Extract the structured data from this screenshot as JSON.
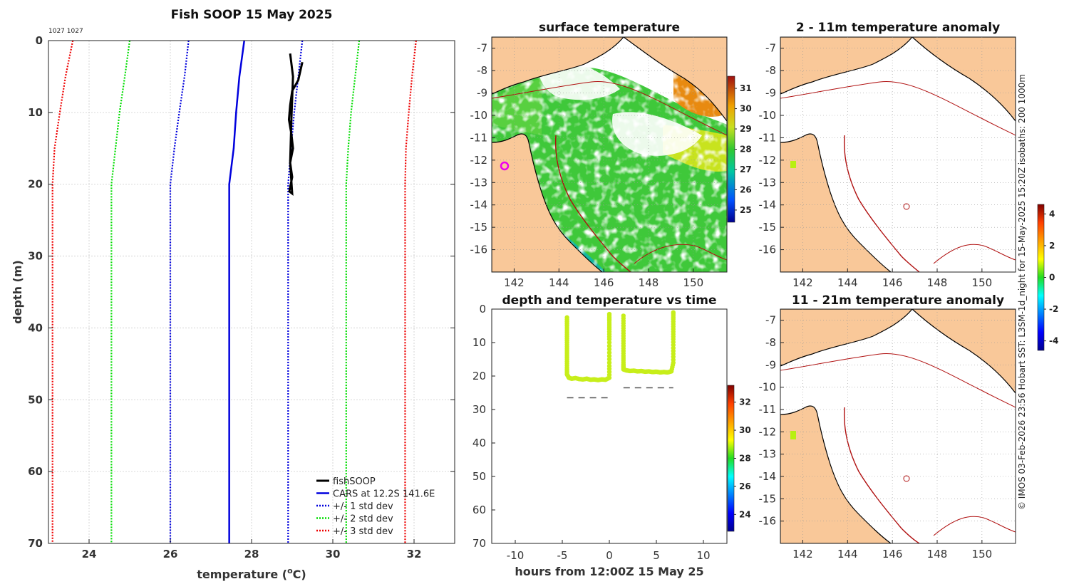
{
  "chart_data": [
    {
      "id": "profile",
      "type": "line",
      "title": "Fish SOOP 15 May 2025",
      "annotation": "1027 1027",
      "xlabel_prefix": "temperature (",
      "xlabel_sup": "o",
      "xlabel_suffix": "C)",
      "ylabel": "depth (m)",
      "xlim": [
        23.0,
        33.0
      ],
      "ylim": [
        0,
        70
      ],
      "x_ticks": [
        "24",
        "26",
        "28",
        "30",
        "32"
      ],
      "y_ticks": [
        "0",
        "10",
        "20",
        "30",
        "40",
        "50",
        "60",
        "70"
      ],
      "legend": [
        "fishSOOP",
        "CARS at 12.2S 141.6E",
        "+/- 1 std dev",
        "+/- 2 std dev",
        "+/- 3 std dev"
      ],
      "series": [
        {
          "name": "CARS mean",
          "color": "#0000dd",
          "style": "solid",
          "temp": [
            27.82,
            27.7,
            27.62,
            27.56,
            27.45,
            27.45,
            27.45,
            27.45,
            27.45,
            27.45
          ],
          "depth": [
            0,
            5,
            10,
            15,
            20,
            30,
            40,
            50,
            60,
            70
          ]
        },
        {
          "name": "+1 std",
          "color": "#0000dd",
          "style": "dot",
          "temp": [
            26.45,
            26.35,
            26.22,
            26.1,
            26.0,
            26.0,
            26.0,
            26.0,
            26.0,
            26.0
          ],
          "depth": [
            0,
            5,
            10,
            15,
            20,
            30,
            40,
            50,
            60,
            70
          ]
        },
        {
          "name": "-1 std",
          "color": "#0000dd",
          "style": "dot",
          "temp": [
            29.25,
            29.15,
            29.05,
            28.97,
            28.9,
            28.9,
            28.9,
            28.9,
            28.9,
            28.9
          ],
          "depth": [
            0,
            5,
            10,
            15,
            20,
            30,
            40,
            50,
            60,
            70
          ]
        },
        {
          "name": "+2 std",
          "color": "#00dd00",
          "style": "dot",
          "temp": [
            25.0,
            24.88,
            24.75,
            24.65,
            24.55,
            24.55,
            24.55,
            24.55,
            24.55,
            24.55
          ],
          "depth": [
            0,
            5,
            10,
            15,
            20,
            30,
            40,
            50,
            60,
            70
          ]
        },
        {
          "name": "-2 std",
          "color": "#00dd00",
          "style": "dot",
          "temp": [
            30.65,
            30.55,
            30.45,
            30.38,
            30.33,
            30.33,
            30.33,
            30.33,
            30.33,
            30.33
          ],
          "depth": [
            0,
            5,
            10,
            15,
            20,
            30,
            40,
            50,
            60,
            70
          ]
        },
        {
          "name": "+3 std",
          "color": "#ee0000",
          "style": "dot",
          "temp": [
            23.6,
            23.42,
            23.28,
            23.15,
            23.1,
            23.1,
            23.1,
            23.1,
            23.1,
            23.1
          ],
          "depth": [
            0,
            5,
            10,
            15,
            20,
            30,
            40,
            50,
            60,
            70
          ]
        },
        {
          "name": "-3 std",
          "color": "#ee0000",
          "style": "dot",
          "temp": [
            32.05,
            31.95,
            31.87,
            31.8,
            31.78,
            31.78,
            31.78,
            31.78,
            31.78,
            31.78
          ],
          "depth": [
            0,
            5,
            10,
            15,
            20,
            30,
            40,
            50,
            60,
            70
          ]
        },
        {
          "name": "fishSOOP",
          "color": "#000000",
          "style": "solid",
          "temp": [
            29.25,
            29.15,
            29.0,
            28.95,
            28.92,
            28.98,
            29.02,
            28.95,
            29.0,
            28.93,
            29.0,
            28.95,
            28.98,
            29.02,
            28.95
          ],
          "depth": [
            3,
            5.5,
            7,
            9,
            11,
            13,
            15,
            17,
            19,
            21,
            21.3,
            17,
            11,
            5,
            1.8
          ]
        }
      ]
    },
    {
      "id": "sst-map",
      "type": "heatmap",
      "title": "surface temperature",
      "xlim": [
        141,
        151.5
      ],
      "ylim": [
        -17,
        -6.5
      ],
      "x_ticks": [
        "142",
        "144",
        "146",
        "148",
        "150"
      ],
      "y_ticks": [
        "-7",
        "-8",
        "-9",
        "-10",
        "-11",
        "-12",
        "-13",
        "-14",
        "-15",
        "-16"
      ],
      "colorbar_ticks": [
        "31",
        "30",
        "29",
        "28",
        "27",
        "26",
        "25"
      ],
      "colorbar_range": [
        24.4,
        31.6
      ]
    },
    {
      "id": "depth-time",
      "type": "scatter",
      "title": "depth and temperature vs time",
      "xlabel": "hours from 12:00Z 15 May 25",
      "xlim": [
        -12.5,
        12.5
      ],
      "ylim": [
        0,
        70
      ],
      "x_ticks": [
        "-10",
        "-5",
        "0",
        "5",
        "10"
      ],
      "y_ticks": [
        "0",
        "10",
        "20",
        "30",
        "40",
        "50",
        "60",
        "70"
      ],
      "colorbar_ticks": [
        "32",
        "30",
        "28",
        "26",
        "24"
      ],
      "colorbar_range": [
        22.8,
        33.2
      ],
      "series": [
        {
          "name": "deployment 1",
          "color": "#c7ee1a",
          "hours": [
            -4.5,
            -4.5,
            -4.5,
            -4.5,
            -4.5,
            -4.5,
            -4.5,
            -4.5,
            -4.3,
            -4.0,
            -3.6,
            -3.2,
            -2.8,
            -2.4,
            -2.0,
            -1.6,
            -1.2,
            -0.8,
            -0.4,
            0.0,
            0.0,
            0.0,
            0.0,
            0.0,
            0.0,
            0.0
          ],
          "depth": [
            2.5,
            5,
            7.5,
            10,
            12.5,
            15,
            17.5,
            19.5,
            20.5,
            20.8,
            20.6,
            20.9,
            21.0,
            20.8,
            21.1,
            21.0,
            21.2,
            21.0,
            21.1,
            20.5,
            17,
            13,
            9,
            6,
            3.5,
            1.5
          ]
        },
        {
          "name": "deployment 2",
          "color": "#c7ee1a",
          "hours": [
            1.5,
            1.5,
            1.5,
            1.5,
            1.5,
            1.5,
            1.5,
            1.8,
            2.2,
            2.6,
            3.0,
            3.4,
            3.8,
            4.2,
            4.6,
            5.0,
            5.4,
            5.8,
            6.2,
            6.6,
            6.8,
            6.8,
            6.8,
            6.8,
            6.8,
            6.8
          ],
          "depth": [
            2,
            5,
            8,
            11,
            14,
            16.5,
            18,
            18.3,
            18.5,
            18.4,
            18.6,
            18.5,
            18.7,
            18.6,
            18.8,
            18.7,
            18.9,
            18.8,
            18.9,
            18.6,
            16,
            12.5,
            9,
            6,
            3,
            1
          ]
        }
      ],
      "bottom_markers": [
        {
          "hours": [
            -4.5,
            0.0
          ],
          "depth": 26.5
        },
        {
          "hours": [
            1.5,
            6.8
          ],
          "depth": 23.5
        }
      ]
    },
    {
      "id": "anomaly-2-11",
      "type": "heatmap",
      "title": "2 - 11m temperature anomaly",
      "xlim": [
        141,
        151.5
      ],
      "ylim": [
        -17,
        -6.5
      ],
      "x_ticks": [
        "142",
        "144",
        "146",
        "148",
        "150"
      ],
      "y_ticks": [
        "-7",
        "-8",
        "-9",
        "-10",
        "-11",
        "-12",
        "-13",
        "-14",
        "-15",
        "-16"
      ],
      "colorbar_ticks": [
        "4",
        "2",
        "0",
        "-2",
        "-4"
      ],
      "colorbar_range": [
        -4.6,
        4.6
      ]
    },
    {
      "id": "anomaly-11-21",
      "type": "heatmap",
      "title": "11 - 21m temperature anomaly",
      "xlim": [
        141,
        151.5
      ],
      "ylim": [
        -17,
        -6.5
      ],
      "x_ticks": [
        "142",
        "144",
        "146",
        "148",
        "150"
      ],
      "y_ticks": [
        "-7",
        "-8",
        "-9",
        "-10",
        "-11",
        "-12",
        "-13",
        "-14",
        "-15",
        "-16"
      ]
    }
  ],
  "credit": "© IMOS 03-Feb-2026 23:56 Hobart SST: L3SM-1d_night for 15-May-2025 15:20Z isobaths: 200  1000m",
  "colors": {
    "land": "#f9c899",
    "coast": "#000000",
    "isobath": "#b01010",
    "grid": "#cccccc"
  }
}
